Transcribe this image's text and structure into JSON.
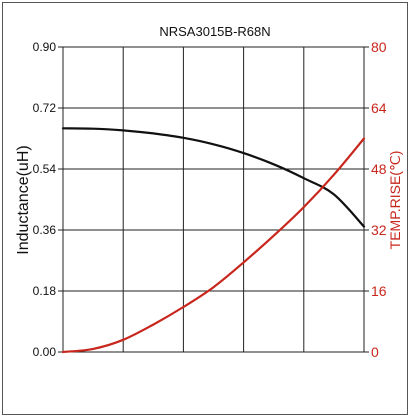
{
  "chart_data": {
    "type": "line",
    "title": "NRSA3015B-R68N",
    "xlabel": "",
    "x": [
      0,
      1,
      2,
      3,
      4,
      5,
      6,
      7,
      8,
      9,
      10
    ],
    "xlim": [
      0,
      10
    ],
    "grid": true,
    "y_left": {
      "label": "Inductance(uH)",
      "lim": [
        0,
        0.9
      ],
      "ticks": [
        "0.00",
        "0.18",
        "0.36",
        "0.54",
        "0.72",
        "0.90"
      ]
    },
    "y_right": {
      "label": "TEMP.RISE(℃)",
      "lim": [
        0,
        80
      ],
      "ticks": [
        "0",
        "16",
        "32",
        "48",
        "64",
        "80"
      ],
      "color": "#c8261c"
    },
    "series": [
      {
        "axis": "left",
        "color": "#111111",
        "values": [
          0.66,
          0.659,
          0.654,
          0.645,
          0.632,
          0.613,
          0.587,
          0.554,
          0.513,
          0.465,
          0.37
        ]
      },
      {
        "axis": "right",
        "color": "#c8261c",
        "values": [
          0,
          0.8,
          3.2,
          7.2,
          11.8,
          17.0,
          23.5,
          30.5,
          38.0,
          46.5,
          56.0
        ]
      }
    ]
  }
}
